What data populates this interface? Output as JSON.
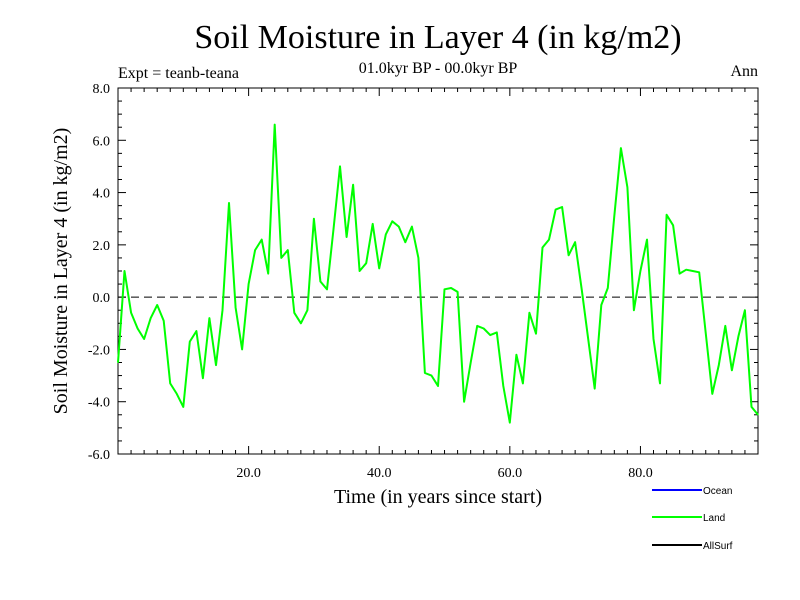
{
  "chart_data": {
    "type": "line",
    "title": "Soil Moisture in Layer 4 (in kg/m2)",
    "subtitle": "01.0kyr BP - 00.0kyr BP",
    "experiment": "Expt = teanb-teana",
    "season": "Ann",
    "xlabel": "Time (in years since start)",
    "ylabel": "Soil Moisture in Layer 4 (in kg/m2)",
    "xlim": [
      0,
      98
    ],
    "ylim": [
      -6,
      8
    ],
    "xticks": [
      20,
      40,
      60,
      80
    ],
    "xtick_labels": [
      "20.0",
      "40.0",
      "60.0",
      "80.0"
    ],
    "yticks": [
      -6,
      -4,
      -2,
      0,
      2,
      4,
      6,
      8
    ],
    "ytick_labels": [
      "-6.0",
      "-4.0",
      "-2.0",
      "0.0",
      "2.0",
      "4.0",
      "6.0",
      "8.0"
    ],
    "reference_line": 0,
    "legend": [
      "Ocean",
      "Land",
      "AllSurf"
    ],
    "legend_colors": [
      "#0000ff",
      "#00ff00",
      "#000000"
    ],
    "series": [
      {
        "name": "Land",
        "color": "#00ff00",
        "x": [
          0,
          1,
          2,
          3,
          4,
          5,
          6,
          7,
          8,
          9,
          10,
          11,
          12,
          13,
          14,
          15,
          16,
          17,
          18,
          19,
          20,
          21,
          22,
          23,
          24,
          25,
          26,
          27,
          28,
          29,
          30,
          31,
          32,
          33,
          34,
          35,
          36,
          37,
          38,
          39,
          40,
          41,
          42,
          43,
          44,
          45,
          46,
          47,
          48,
          49,
          50,
          51,
          52,
          53,
          54,
          55,
          56,
          57,
          58,
          59,
          60,
          61,
          62,
          63,
          64,
          65,
          66,
          67,
          68,
          69,
          70,
          71,
          72,
          73,
          74,
          75,
          76,
          77,
          78,
          79,
          80,
          81,
          82,
          83,
          84,
          85,
          86,
          87,
          88,
          89,
          90,
          91,
          92,
          93,
          94,
          95,
          96,
          97,
          98
        ],
        "values": [
          -2.5,
          1.0,
          -0.6,
          -1.2,
          -1.6,
          -0.8,
          -0.3,
          -0.9,
          -3.3,
          -3.7,
          -4.2,
          -1.7,
          -1.3,
          -3.1,
          -0.8,
          -2.6,
          -0.5,
          3.6,
          -0.4,
          -2.0,
          0.5,
          1.8,
          2.2,
          0.9,
          6.6,
          1.5,
          1.8,
          -0.6,
          -1.0,
          -0.5,
          3.0,
          0.6,
          0.3,
          2.6,
          5.0,
          2.3,
          4.3,
          1.0,
          1.3,
          2.8,
          1.1,
          2.4,
          2.9,
          2.7,
          2.1,
          2.7,
          1.5,
          -2.9,
          -3.0,
          -3.4,
          0.3,
          0.35,
          0.2,
          -4.0,
          -2.5,
          -1.1,
          -1.2,
          -1.45,
          -1.35,
          -3.4,
          -4.8,
          -2.2,
          -3.3,
          -0.6,
          -1.4,
          1.9,
          2.2,
          3.35,
          3.45,
          1.6,
          2.1,
          0.3,
          -1.6,
          -3.5,
          -0.3,
          0.35,
          3.1,
          5.7,
          4.2,
          -0.5,
          1.0,
          2.2,
          -1.6,
          -3.3,
          3.15,
          2.75,
          0.9,
          1.05,
          1.0,
          0.95,
          -1.4,
          -3.7,
          -2.6,
          -1.1,
          -2.8,
          -1.5,
          -0.5,
          -4.2,
          -4.5
        ]
      }
    ]
  }
}
